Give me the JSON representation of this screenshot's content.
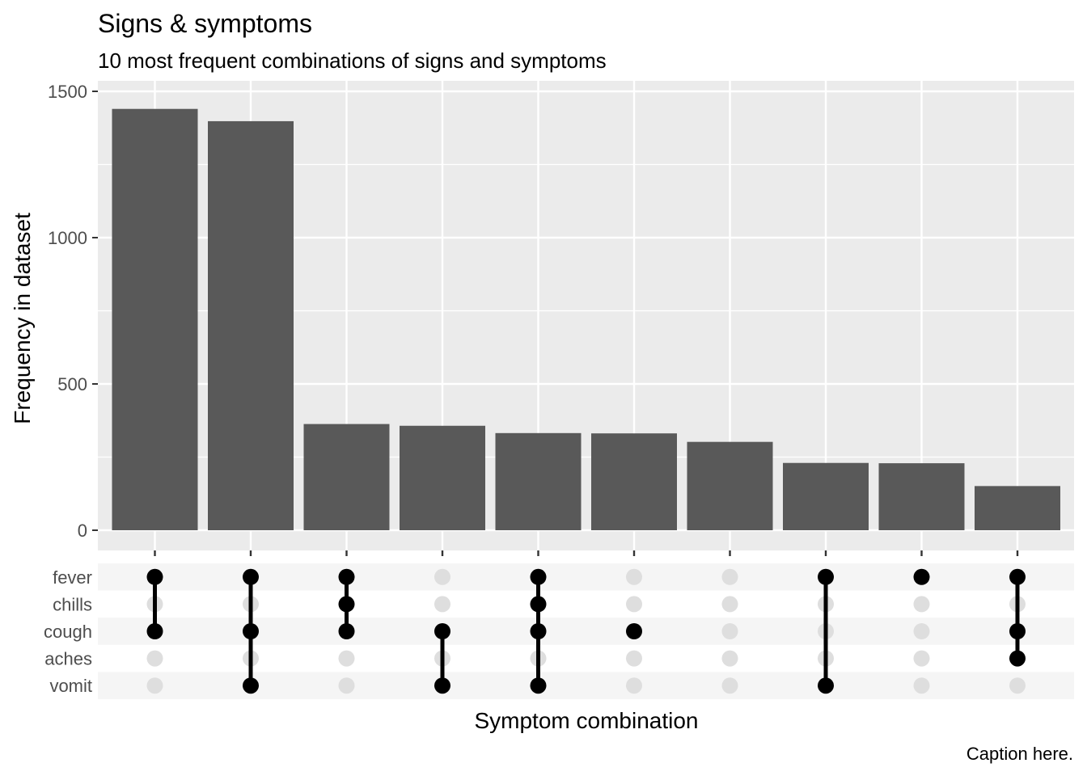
{
  "chart_data": {
    "type": "bar",
    "title": "Signs & symptoms",
    "subtitle": "10 most frequent combinations of signs and symptoms",
    "xlabel": "Symptom combination",
    "ylabel": "Frequency in dataset",
    "caption": "Caption here.",
    "ylim": [
      0,
      1500
    ],
    "yticks": [
      0,
      500,
      1000,
      1500
    ],
    "grid": true,
    "sets": [
      "fever",
      "chills",
      "cough",
      "aches",
      "vomit"
    ],
    "values": [
      1440,
      1398,
      363,
      357,
      332,
      331,
      302,
      230,
      229,
      151
    ],
    "combinations": [
      [
        "fever",
        "cough"
      ],
      [
        "fever",
        "cough",
        "vomit"
      ],
      [
        "fever",
        "chills",
        "cough"
      ],
      [
        "cough",
        "vomit"
      ],
      [
        "fever",
        "chills",
        "cough",
        "vomit"
      ],
      [
        "cough"
      ],
      [],
      [
        "fever",
        "vomit"
      ],
      [
        "fever"
      ],
      [
        "fever",
        "cough",
        "aches"
      ]
    ],
    "colors": {
      "bar": "#595959",
      "panel_bg": "#ebebeb",
      "grid": "#ffffff",
      "dot_active": "#000000",
      "dot_inactive": "#dedede",
      "matrix_stripe": "#f5f5f5"
    }
  }
}
